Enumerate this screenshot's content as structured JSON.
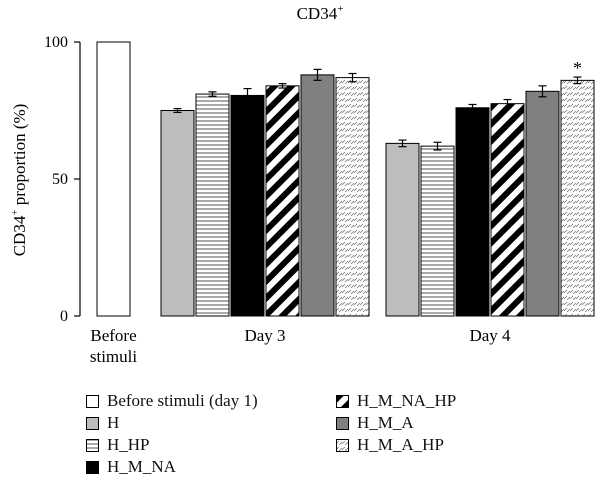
{
  "chart_data": {
    "type": "bar",
    "title": "CD34",
    "title_sup": "+",
    "ylabel_prefix": "CD34",
    "ylabel_sup": "+",
    "ylabel_suffix": " proportion (%)",
    "ylim": [
      0,
      100
    ],
    "yticks": [
      "0",
      "50",
      "100"
    ],
    "groups": [
      {
        "label_lines": [
          "Before",
          "stimuli"
        ],
        "bars": [
          {
            "series": "Before stimuli (day 1)",
            "value": 100,
            "error": 0
          }
        ]
      },
      {
        "label_lines": [
          "Day 3"
        ],
        "bars": [
          {
            "series": "H",
            "value": 75,
            "error": 0.7
          },
          {
            "series": "H_HP",
            "value": 81,
            "error": 0.8
          },
          {
            "series": "H_M_NA",
            "value": 80.5,
            "error": 2.5
          },
          {
            "series": "H_M_NA_HP",
            "value": 84,
            "error": 0.8
          },
          {
            "series": "H_M_A",
            "value": 88,
            "error": 2
          },
          {
            "series": "H_M_A_HP",
            "value": 87,
            "error": 1.5
          }
        ]
      },
      {
        "label_lines": [
          "Day 4"
        ],
        "bars": [
          {
            "series": "H",
            "value": 63,
            "error": 1.2
          },
          {
            "series": "H_HP",
            "value": 62,
            "error": 1.4
          },
          {
            "series": "H_M_NA",
            "value": 76,
            "error": 1.2
          },
          {
            "series": "H_M_NA_HP",
            "value": 77.5,
            "error": 1.5
          },
          {
            "series": "H_M_A",
            "value": 82,
            "error": 2
          },
          {
            "series": "H_M_A_HP",
            "value": 86,
            "error": 1.2,
            "annotation": "*"
          }
        ]
      }
    ],
    "legend": [
      {
        "label": "Before stimuli (day 1)",
        "pattern": "white"
      },
      {
        "label": "H",
        "pattern": "light-gray"
      },
      {
        "label": "H_HP",
        "pattern": "horizontal-lines"
      },
      {
        "label": "H_M_NA",
        "pattern": "black"
      },
      {
        "label": "H_M_NA_HP",
        "pattern": "diagonal-stripes"
      },
      {
        "label": "H_M_A",
        "pattern": "dark-gray"
      },
      {
        "label": "H_M_A_HP",
        "pattern": "hatched-dots"
      }
    ],
    "legend_placement": "bottom",
    "grid": false,
    "colors": {
      "light-gray": "#bdbdbd",
      "dark-gray": "#808080",
      "black": "#000000",
      "white": "#ffffff",
      "stroke": "#000000"
    }
  }
}
